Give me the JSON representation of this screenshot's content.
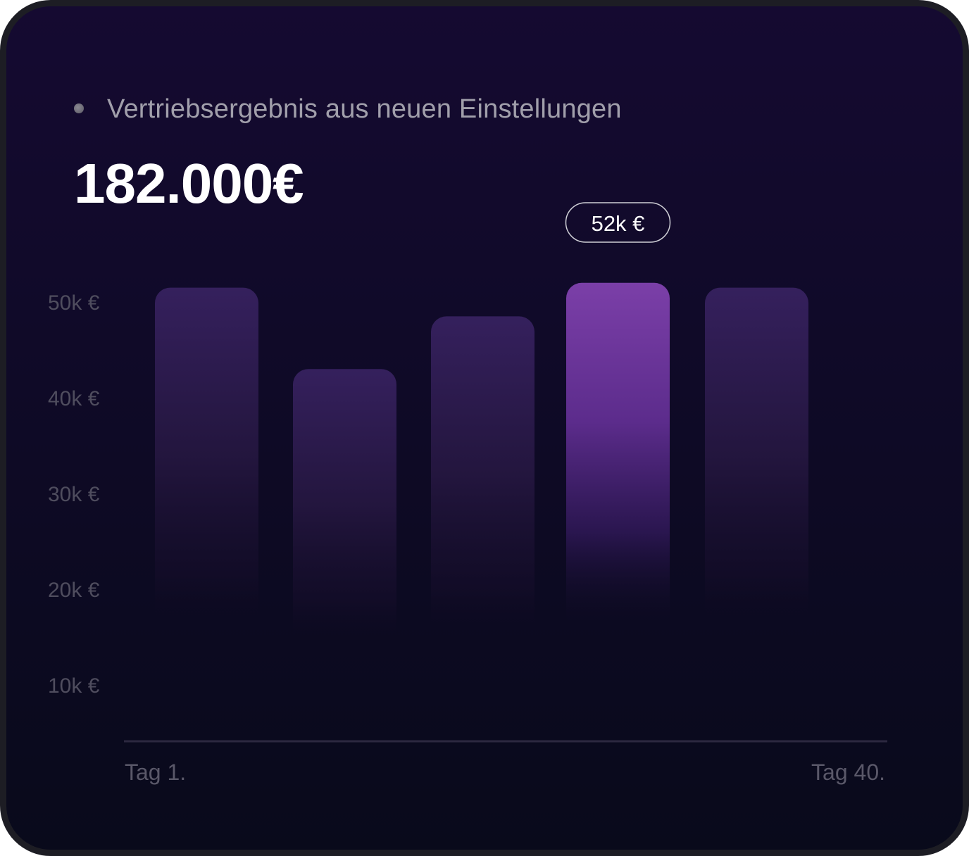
{
  "header": {
    "subtitle": "Vertriebsergebnis aus neuen Einstellungen",
    "total": "182.000€"
  },
  "chart_data": {
    "type": "bar",
    "title": "",
    "xlabel": "",
    "ylabel": "",
    "y_ticks": [
      "10k €",
      "20k €",
      "30k €",
      "40k €",
      "50k €"
    ],
    "y_tick_values": [
      10,
      20,
      30,
      40,
      50
    ],
    "x_tick_labels": [
      "Tag 1.",
      "Tag 40."
    ],
    "values": [
      51.5,
      43,
      48.5,
      52,
      51.5
    ],
    "highlight_index": 3,
    "highlight_label": "52k €",
    "grid": false,
    "colors": {
      "bar": "#3a2463",
      "bar_highlight": "#7a3fa6",
      "axis": "#2c2840"
    }
  }
}
